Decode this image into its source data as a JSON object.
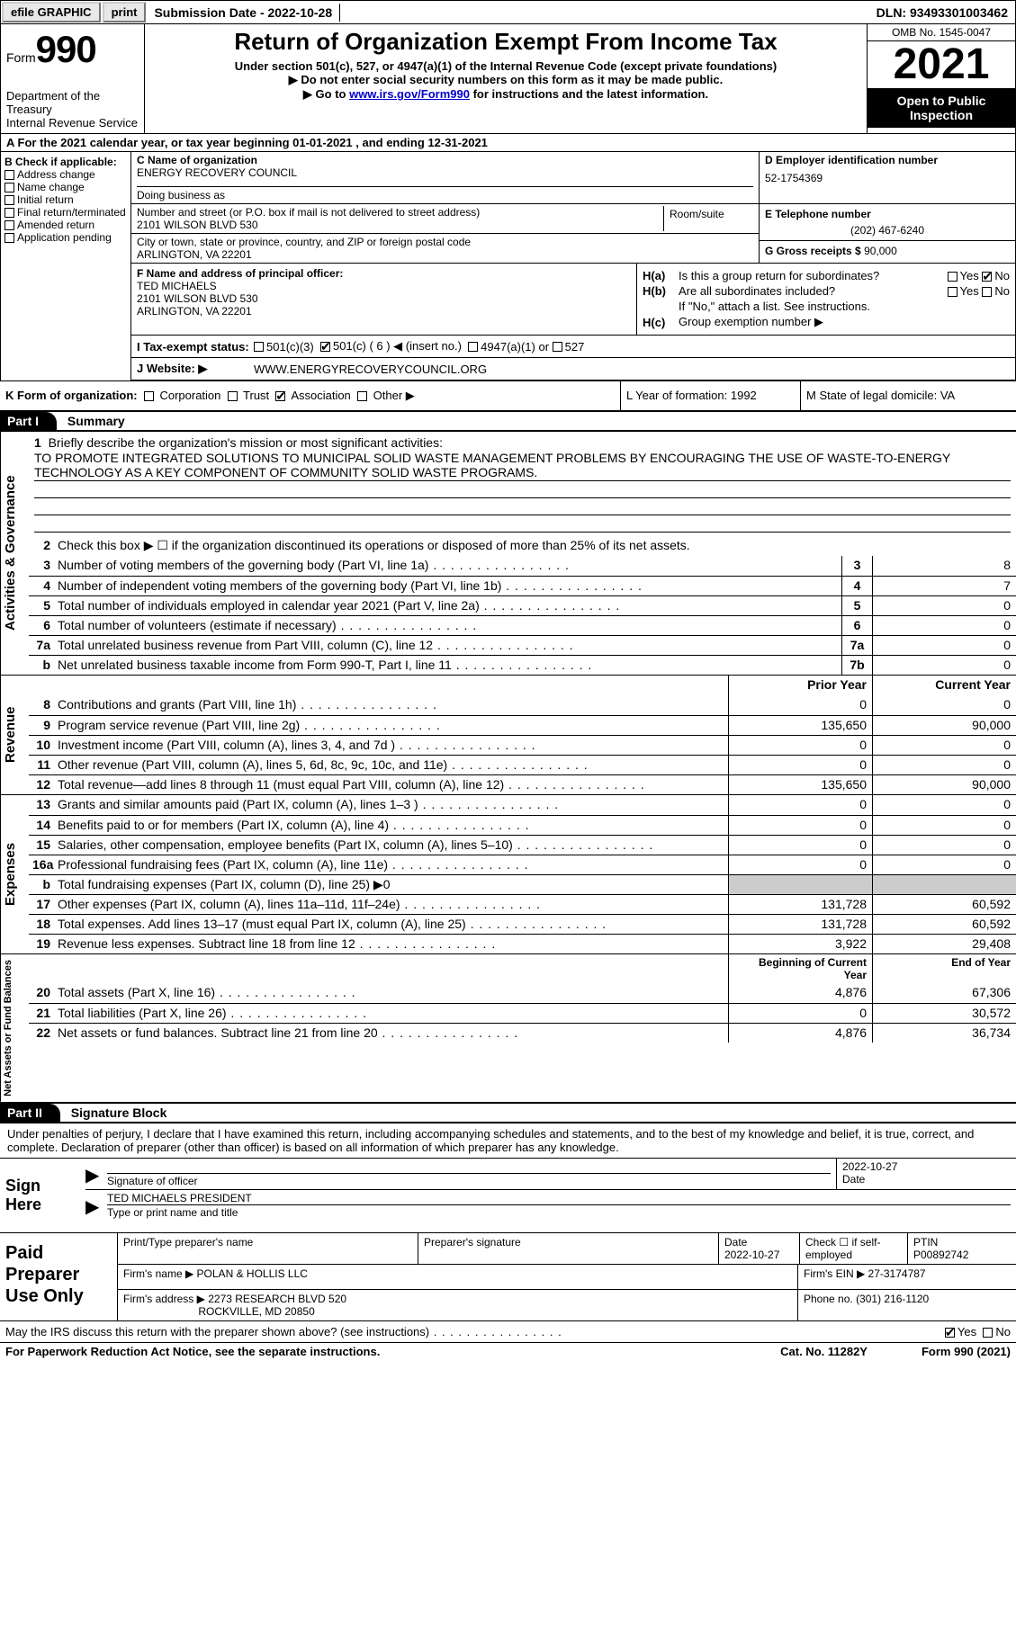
{
  "topbar": {
    "efile": "efile GRAPHIC",
    "print": "print",
    "submission": "Submission Date - 2022-10-28",
    "dln": "DLN: 93493301003462"
  },
  "header": {
    "form_label": "Form",
    "form_no": "990",
    "dept": "Department of the Treasury",
    "irs": "Internal Revenue Service",
    "title": "Return of Organization Exempt From Income Tax",
    "sub1": "Under section 501(c), 527, or 4947(a)(1) of the Internal Revenue Code (except private foundations)",
    "sub2": "▶ Do not enter social security numbers on this form as it may be made public.",
    "sub3_a": "▶ Go to ",
    "sub3_link": "www.irs.gov/Form990",
    "sub3_b": " for instructions and the latest information.",
    "omb": "OMB No. 1545-0047",
    "year": "2021",
    "open": "Open to Public Inspection"
  },
  "row_a": "A For the 2021 calendar year, or tax year beginning 01-01-2021   , and ending 12-31-2021",
  "b": {
    "label": "B Check if applicable:",
    "items": [
      "Address change",
      "Name change",
      "Initial return",
      "Final return/terminated",
      "Amended return",
      "Application pending"
    ]
  },
  "c": {
    "name_label": "C Name of organization",
    "name": "ENERGY RECOVERY COUNCIL",
    "dba_label": "Doing business as",
    "dba": "",
    "addr_label": "Number and street (or P.O. box if mail is not delivered to street address)",
    "addr": "2101 WILSON BLVD 530",
    "suite_label": "Room/suite",
    "city_label": "City or town, state or province, country, and ZIP or foreign postal code",
    "city": "ARLINGTON, VA  22201"
  },
  "d": {
    "label": "D Employer identification number",
    "value": "52-1754369"
  },
  "e": {
    "label": "E Telephone number",
    "value": "(202) 467-6240"
  },
  "g": {
    "label": "G Gross receipts $",
    "value": "90,000"
  },
  "f": {
    "label": "F  Name and address of principal officer:",
    "name": "TED MICHAELS",
    "addr1": "2101 WILSON BLVD 530",
    "addr2": "ARLINGTON, VA  22201"
  },
  "h": {
    "a_label": "H(a)",
    "a_text": "Is this a group return for subordinates?",
    "b_label": "H(b)",
    "b_text": "Are all subordinates included?",
    "b_note": "If \"No,\" attach a list. See instructions.",
    "c_label": "H(c)",
    "c_text": "Group exemption number ▶",
    "yes": "Yes",
    "no": "No"
  },
  "i": {
    "label": "I   Tax-exempt status:",
    "opts": [
      "501(c)(3)",
      "501(c) ( 6 ) ◀ (insert no.)",
      "4947(a)(1) or",
      "527"
    ]
  },
  "j": {
    "label": "J   Website: ▶",
    "value": "WWW.ENERGYRECOVERYCOUNCIL.ORG"
  },
  "k": {
    "label": "K Form of organization:",
    "opts": [
      "Corporation",
      "Trust",
      "Association",
      "Other ▶"
    ]
  },
  "l": {
    "text": "L Year of formation: 1992"
  },
  "m": {
    "text": "M State of legal domicile: VA"
  },
  "part1": {
    "num": "Part I",
    "title": "Summary"
  },
  "mission": {
    "num": "1",
    "label": "Briefly describe the organization's mission or most significant activities:",
    "text": "TO PROMOTE INTEGRATED SOLUTIONS TO MUNICIPAL SOLID WASTE MANAGEMENT PROBLEMS BY ENCOURAGING THE USE OF WASTE-TO-ENERGY TECHNOLOGY AS A KEY COMPONENT OF COMMUNITY SOLID WASTE PROGRAMS."
  },
  "line2": {
    "num": "2",
    "text": "Check this box ▶ ☐ if the organization discontinued its operations or disposed of more than 25% of its net assets."
  },
  "gov_lines": [
    {
      "num": "3",
      "desc": "Number of voting members of the governing body (Part VI, line 1a)",
      "box": "3",
      "val": "8"
    },
    {
      "num": "4",
      "desc": "Number of independent voting members of the governing body (Part VI, line 1b)",
      "box": "4",
      "val": "7"
    },
    {
      "num": "5",
      "desc": "Total number of individuals employed in calendar year 2021 (Part V, line 2a)",
      "box": "5",
      "val": "0"
    },
    {
      "num": "6",
      "desc": "Total number of volunteers (estimate if necessary)",
      "box": "6",
      "val": "0"
    },
    {
      "num": "7a",
      "desc": "Total unrelated business revenue from Part VIII, column (C), line 12",
      "box": "7a",
      "val": "0"
    },
    {
      "num": "b",
      "desc": "Net unrelated business taxable income from Form 990-T, Part I, line 11",
      "box": "7b",
      "val": "0"
    }
  ],
  "rev_hdr": {
    "prior": "Prior Year",
    "current": "Current Year"
  },
  "rev_lines": [
    {
      "num": "8",
      "desc": "Contributions and grants (Part VIII, line 1h)",
      "prior": "0",
      "cur": "0"
    },
    {
      "num": "9",
      "desc": "Program service revenue (Part VIII, line 2g)",
      "prior": "135,650",
      "cur": "90,000"
    },
    {
      "num": "10",
      "desc": "Investment income (Part VIII, column (A), lines 3, 4, and 7d )",
      "prior": "0",
      "cur": "0"
    },
    {
      "num": "11",
      "desc": "Other revenue (Part VIII, column (A), lines 5, 6d, 8c, 9c, 10c, and 11e)",
      "prior": "0",
      "cur": "0"
    },
    {
      "num": "12",
      "desc": "Total revenue—add lines 8 through 11 (must equal Part VIII, column (A), line 12)",
      "prior": "135,650",
      "cur": "90,000"
    }
  ],
  "exp_lines": [
    {
      "num": "13",
      "desc": "Grants and similar amounts paid (Part IX, column (A), lines 1–3 )",
      "prior": "0",
      "cur": "0"
    },
    {
      "num": "14",
      "desc": "Benefits paid to or for members (Part IX, column (A), line 4)",
      "prior": "0",
      "cur": "0"
    },
    {
      "num": "15",
      "desc": "Salaries, other compensation, employee benefits (Part IX, column (A), lines 5–10)",
      "prior": "0",
      "cur": "0"
    },
    {
      "num": "16a",
      "desc": "Professional fundraising fees (Part IX, column (A), line 11e)",
      "prior": "0",
      "cur": "0"
    },
    {
      "num": "b",
      "desc": "Total fundraising expenses (Part IX, column (D), line 25) ▶0",
      "prior": "",
      "cur": "",
      "grey": true
    },
    {
      "num": "17",
      "desc": "Other expenses (Part IX, column (A), lines 11a–11d, 11f–24e)",
      "prior": "131,728",
      "cur": "60,592"
    },
    {
      "num": "18",
      "desc": "Total expenses. Add lines 13–17 (must equal Part IX, column (A), line 25)",
      "prior": "131,728",
      "cur": "60,592"
    },
    {
      "num": "19",
      "desc": "Revenue less expenses. Subtract line 18 from line 12",
      "prior": "3,922",
      "cur": "29,408"
    }
  ],
  "na_hdr": {
    "prior": "Beginning of Current Year",
    "current": "End of Year"
  },
  "na_lines": [
    {
      "num": "20",
      "desc": "Total assets (Part X, line 16)",
      "prior": "4,876",
      "cur": "67,306"
    },
    {
      "num": "21",
      "desc": "Total liabilities (Part X, line 26)",
      "prior": "0",
      "cur": "30,572"
    },
    {
      "num": "22",
      "desc": "Net assets or fund balances. Subtract line 21 from line 20",
      "prior": "4,876",
      "cur": "36,734"
    }
  ],
  "vtabs": {
    "gov": "Activities & Governance",
    "rev": "Revenue",
    "exp": "Expenses",
    "na": "Net Assets or Fund Balances"
  },
  "part2": {
    "num": "Part II",
    "title": "Signature Block"
  },
  "sig_intro": "Under penalties of perjury, I declare that I have examined this return, including accompanying schedules and statements, and to the best of my knowledge and belief, it is true, correct, and complete. Declaration of preparer (other than officer) is based on all information of which preparer has any knowledge.",
  "sign": {
    "here": "Sign Here",
    "sig_label": "Signature of officer",
    "date": "2022-10-27",
    "date_label": "Date",
    "name": "TED MICHAELS PRESIDENT",
    "name_label": "Type or print name and title"
  },
  "prep": {
    "label": "Paid Preparer Use Only",
    "name_label": "Print/Type preparer's name",
    "sig_label": "Preparer's signature",
    "date_label": "Date",
    "date": "2022-10-27",
    "check_label": "Check ☐ if self-employed",
    "ptin_label": "PTIN",
    "ptin": "P00892742",
    "firm_name_label": "Firm's name    ▶",
    "firm_name": "POLAN & HOLLIS LLC",
    "firm_ein_label": "Firm's EIN ▶",
    "firm_ein": "27-3174787",
    "firm_addr_label": "Firm's address ▶",
    "firm_addr1": "2273 RESEARCH BLVD 520",
    "firm_addr2": "ROCKVILLE, MD  20850",
    "phone_label": "Phone no.",
    "phone": "(301) 216-1120"
  },
  "footer": {
    "q": "May the IRS discuss this return with the preparer shown above? (see instructions)",
    "yes": "Yes",
    "no": "No",
    "paperwork": "For Paperwork Reduction Act Notice, see the separate instructions.",
    "cat": "Cat. No. 11282Y",
    "form": "Form 990 (2021)"
  }
}
